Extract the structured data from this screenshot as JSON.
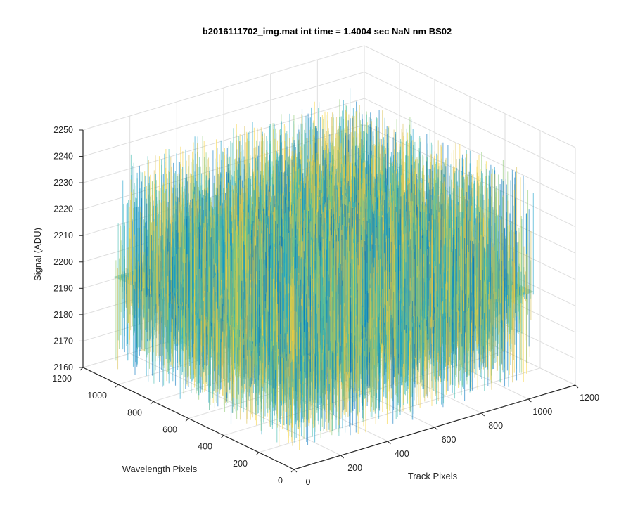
{
  "chart_data": {
    "type": "surface",
    "title": "b2016111702_img.mat int time = 1.4004 sec  NaN nm BS02",
    "xlabel": "Track Pixels",
    "ylabel": "Wavelength Pixels",
    "zlabel": "Signal (ADU)",
    "xlim": [
      0,
      1200
    ],
    "ylim": [
      0,
      1200
    ],
    "zlim": [
      2160,
      2250
    ],
    "x_ticks": [
      "0",
      "200",
      "400",
      "600",
      "800",
      "1000",
      "1200"
    ],
    "y_ticks": [
      "0",
      "200",
      "400",
      "600",
      "800",
      "1000",
      "1200"
    ],
    "z_ticks": [
      "2160",
      "2170",
      "2180",
      "2190",
      "2200",
      "2210",
      "2220",
      "2230",
      "2240",
      "2250"
    ],
    "x_extent": [
      0,
      1024
    ],
    "y_extent": [
      0,
      1024
    ],
    "surface_mean": 2200,
    "surface_noise_range": [
      2165,
      2245
    ],
    "grid": true,
    "colormap": [
      "#0072bd",
      "#1aa0c8",
      "#3fbcb0",
      "#8bc86f",
      "#d8c050",
      "#f5d23a"
    ]
  }
}
